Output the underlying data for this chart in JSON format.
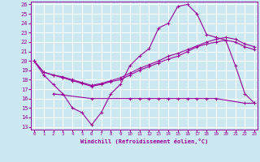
{
  "xlabel": "Windchill (Refroidissement éolien,°C)",
  "background_color": "#cce8f0",
  "grid_color": "#ffffff",
  "line_color": "#990099",
  "xmin": 0,
  "xmax": 23,
  "ymin": 13,
  "ymax": 26,
  "series": [
    {
      "x": [
        0,
        1,
        2,
        3,
        4,
        5,
        6,
        7,
        8,
        9,
        10,
        11,
        12,
        13,
        14,
        15,
        16,
        17,
        18,
        19,
        20,
        21,
        22,
        23
      ],
      "y": [
        20.0,
        18.5,
        17.5,
        16.5,
        15.0,
        14.5,
        13.2,
        14.5,
        16.5,
        17.5,
        19.5,
        20.5,
        21.3,
        23.5,
        24.0,
        25.8,
        26.0,
        25.0,
        22.8,
        22.5,
        22.2,
        19.5,
        16.5,
        15.5
      ]
    },
    {
      "x": [
        0,
        1,
        2,
        3,
        4,
        5,
        6,
        7,
        8,
        9,
        10,
        11,
        12,
        13,
        14,
        15,
        16,
        17,
        18,
        19,
        20,
        21,
        22,
        23
      ],
      "y": [
        20.0,
        18.8,
        18.5,
        18.2,
        17.9,
        17.6,
        17.3,
        17.5,
        17.8,
        18.0,
        18.5,
        19.0,
        19.4,
        19.8,
        20.2,
        20.5,
        21.0,
        21.5,
        21.8,
        22.0,
        22.2,
        22.0,
        21.5,
        21.2
      ]
    },
    {
      "x": [
        0,
        1,
        2,
        3,
        4,
        5,
        6,
        7,
        8,
        9,
        10,
        11,
        12,
        13,
        14,
        15,
        16,
        17,
        18,
        19,
        20,
        21,
        22,
        23
      ],
      "y": [
        20.0,
        18.8,
        18.5,
        18.3,
        18.0,
        17.7,
        17.4,
        17.6,
        17.9,
        18.2,
        18.7,
        19.2,
        19.6,
        20.0,
        20.5,
        20.8,
        21.2,
        21.6,
        22.0,
        22.3,
        22.5,
        22.3,
        21.8,
        21.5
      ]
    },
    {
      "x": [
        0,
        1,
        2,
        3,
        4,
        5,
        6,
        7,
        8,
        9,
        10,
        11,
        12,
        13,
        14,
        15,
        16,
        17,
        18,
        19,
        20,
        21,
        22,
        23
      ],
      "y": [
        null,
        null,
        16.5,
        null,
        null,
        null,
        16.0,
        null,
        null,
        null,
        16.0,
        16.0,
        16.0,
        16.0,
        16.0,
        16.0,
        16.0,
        16.0,
        16.0,
        16.0,
        null,
        null,
        15.5,
        15.5
      ]
    }
  ],
  "yticks": [
    13,
    14,
    15,
    16,
    17,
    18,
    19,
    20,
    21,
    22,
    23,
    24,
    25,
    26
  ],
  "xticks": [
    0,
    1,
    2,
    3,
    4,
    5,
    6,
    7,
    8,
    9,
    10,
    11,
    12,
    13,
    14,
    15,
    16,
    17,
    18,
    19,
    20,
    21,
    22,
    23
  ]
}
